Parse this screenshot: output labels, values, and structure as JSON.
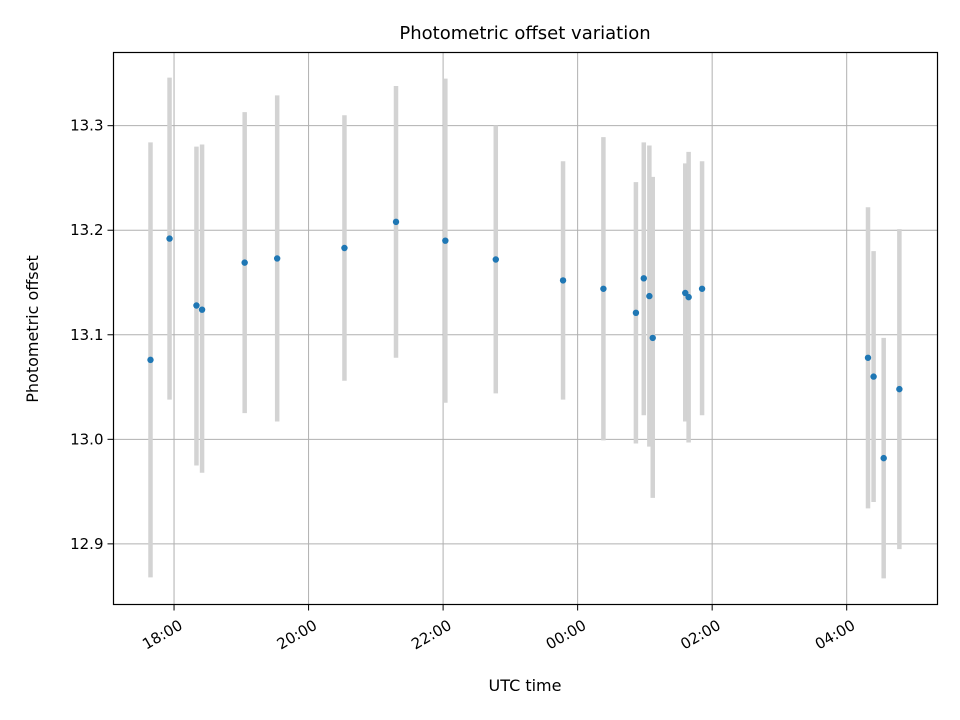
{
  "chart_data": {
    "type": "scatter",
    "title": "Photometric offset variation",
    "xlabel": "UTC time",
    "ylabel": "Photometric offset",
    "x_is_time": true,
    "xlim": [
      "17:06",
      "05:21"
    ],
    "ylim": [
      12.842,
      13.37
    ],
    "xticks": [
      {
        "label": "18:00",
        "value": "18:00"
      },
      {
        "label": "20:00",
        "value": "20:00"
      },
      {
        "label": "22:00",
        "value": "22:00"
      },
      {
        "label": "00:00",
        "value": "00:00"
      },
      {
        "label": "02:00",
        "value": "02:00"
      },
      {
        "label": "04:00",
        "value": "04:00"
      }
    ],
    "yticks": [
      12.9,
      13.0,
      13.1,
      13.2,
      13.3
    ],
    "ytick_labels": [
      "12.9",
      "13.0",
      "13.1",
      "13.2",
      "13.3"
    ],
    "grid": true,
    "colors": {
      "points": "#1f77b4",
      "errorbars": "#d3d3d3",
      "grid": "#b0b0b0"
    },
    "series": [
      {
        "points": [
          {
            "x": "17:39",
            "y": 13.076,
            "ylo": 12.868,
            "yhi": 13.284
          },
          {
            "x": "17:56",
            "y": 13.192,
            "ylo": 13.038,
            "yhi": 13.346
          },
          {
            "x": "18:20",
            "y": 13.128,
            "ylo": 12.975,
            "yhi": 13.28
          },
          {
            "x": "18:25",
            "y": 13.124,
            "ylo": 12.968,
            "yhi": 13.282
          },
          {
            "x": "19:03",
            "y": 13.169,
            "ylo": 13.025,
            "yhi": 13.313
          },
          {
            "x": "19:32",
            "y": 13.173,
            "ylo": 13.017,
            "yhi": 13.329
          },
          {
            "x": "20:32",
            "y": 13.183,
            "ylo": 13.056,
            "yhi": 13.31
          },
          {
            "x": "21:18",
            "y": 13.208,
            "ylo": 13.078,
            "yhi": 13.338
          },
          {
            "x": "22:02",
            "y": 13.19,
            "ylo": 13.035,
            "yhi": 13.345
          },
          {
            "x": "22:47",
            "y": 13.172,
            "ylo": 13.044,
            "yhi": 13.3
          },
          {
            "x": "23:47",
            "y": 13.152,
            "ylo": 13.038,
            "yhi": 13.266
          },
          {
            "x": "00:23",
            "y": 13.144,
            "ylo": 12.999,
            "yhi": 13.289
          },
          {
            "x": "00:52",
            "y": 13.121,
            "ylo": 12.996,
            "yhi": 13.246
          },
          {
            "x": "00:59",
            "y": 13.154,
            "ylo": 13.023,
            "yhi": 13.284
          },
          {
            "x": "01:04",
            "y": 13.137,
            "ylo": 12.993,
            "yhi": 13.281
          },
          {
            "x": "01:07",
            "y": 13.097,
            "ylo": 12.944,
            "yhi": 13.251
          },
          {
            "x": "01:36",
            "y": 13.14,
            "ylo": 13.017,
            "yhi": 13.264
          },
          {
            "x": "01:39",
            "y": 13.136,
            "ylo": 12.997,
            "yhi": 13.275
          },
          {
            "x": "01:51",
            "y": 13.144,
            "ylo": 13.023,
            "yhi": 13.266
          },
          {
            "x": "04:19",
            "y": 13.078,
            "ylo": 12.934,
            "yhi": 13.222
          },
          {
            "x": "04:24",
            "y": 13.06,
            "ylo": 12.94,
            "yhi": 13.18
          },
          {
            "x": "04:33",
            "y": 12.982,
            "ylo": 12.867,
            "yhi": 13.097
          },
          {
            "x": "04:47",
            "y": 13.048,
            "ylo": 12.895,
            "yhi": 13.201
          }
        ]
      }
    ]
  }
}
